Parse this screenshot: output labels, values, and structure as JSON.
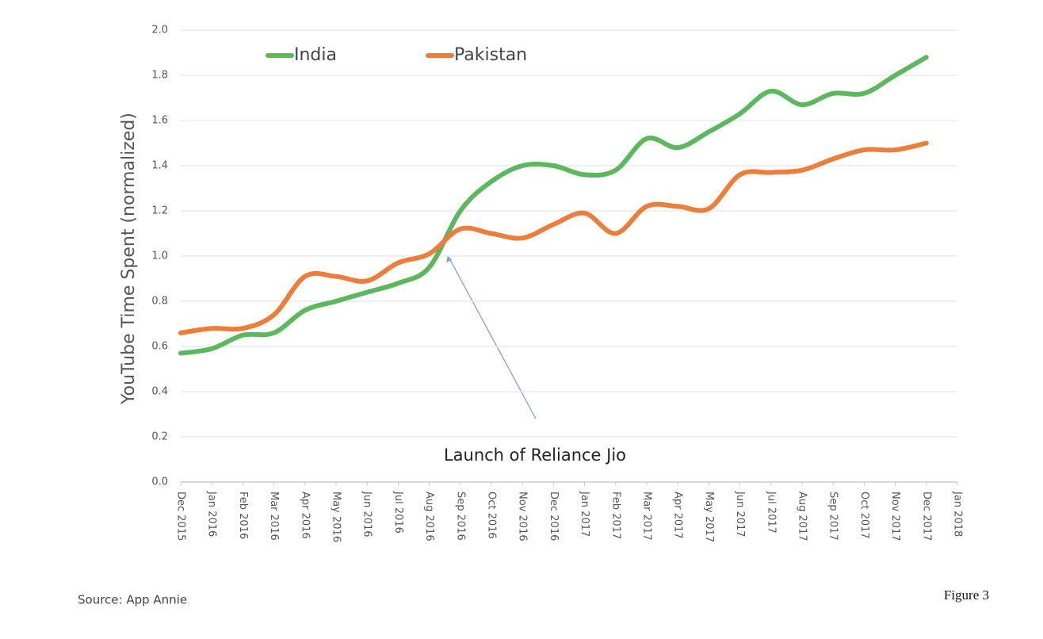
{
  "chart_data": {
    "type": "line",
    "y_label": "YouTube Time Spent (normalized)",
    "annotation": "Launch of Reliance Jio",
    "source": "Source: App Annie",
    "figure_label": "Figure 3",
    "categories": [
      "Dec 2015",
      "Jan 2016",
      "Feb 2016",
      "Mar 2016",
      "Apr 2016",
      "May 2016",
      "Jun 2016",
      "Jul 2016",
      "Aug 2016",
      "Sep 2016",
      "Oct 2016",
      "Nov 2016",
      "Dec 2016",
      "Jan 2017",
      "Feb 2017",
      "Mar 2017",
      "Apr 2017",
      "May 2017",
      "Jun 2017",
      "Jul 2017",
      "Aug 2017",
      "Sep 2017",
      "Oct 2017",
      "Nov 2017",
      "Dec 2017",
      "Jan 2018"
    ],
    "series": [
      {
        "name": "India",
        "color": "#5cb85c",
        "values": [
          0.57,
          0.59,
          0.65,
          0.66,
          0.76,
          0.8,
          0.84,
          0.88,
          0.95,
          1.2,
          1.33,
          1.4,
          1.4,
          1.36,
          1.38,
          1.52,
          1.48,
          1.55,
          1.63,
          1.73,
          1.67,
          1.72,
          1.72,
          1.8,
          1.88,
          null
        ]
      },
      {
        "name": "Pakistan",
        "color": "#ed7d3a",
        "values": [
          0.66,
          0.68,
          0.68,
          0.74,
          0.91,
          0.91,
          0.89,
          0.97,
          1.01,
          1.12,
          1.1,
          1.08,
          1.14,
          1.19,
          1.1,
          1.22,
          1.22,
          1.21,
          1.36,
          1.37,
          1.38,
          1.43,
          1.47,
          1.47,
          1.5,
          null
        ]
      }
    ],
    "ylim": [
      0,
      2.0
    ],
    "yticks": [
      {
        "value": 0,
        "label": "0.0"
      },
      0.2,
      0.4,
      0.6,
      0.8,
      {
        "value": 1,
        "label": "1.0"
      },
      1.2,
      1.4,
      1.6,
      1.8,
      {
        "value": 2,
        "label": "2.0"
      }
    ],
    "grid": true,
    "legend": "top"
  }
}
